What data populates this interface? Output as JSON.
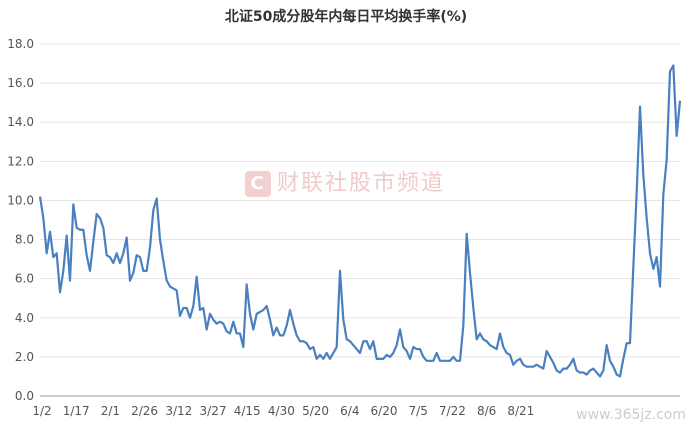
{
  "chart_data": {
    "type": "line",
    "title": "北证50成分股年内每日平均换手率(%)",
    "xlabel": "",
    "ylabel": "",
    "ylim": [
      0,
      18
    ],
    "y_ticks": [
      "0.0",
      "2.0",
      "4.0",
      "6.0",
      "8.0",
      "10.0",
      "12.0",
      "14.0",
      "16.0",
      "18.0"
    ],
    "x_tick_labels": [
      "1/2",
      "1/17",
      "2/1",
      "2/26",
      "3/12",
      "3/27",
      "4/15",
      "4/30",
      "5/20",
      "6/4",
      "6/20",
      "7/5",
      "7/22",
      "8/6",
      "8/21"
    ],
    "grid": true,
    "line_color": "#4a7fc1",
    "series": [
      {
        "values": [
          10.2,
          9.1,
          7.3,
          8.4,
          7.1,
          7.3,
          5.3,
          6.4,
          8.2,
          5.9,
          9.8,
          8.6,
          8.5,
          8.5,
          7.2,
          6.4,
          7.9,
          9.3,
          9.1,
          8.6,
          7.2,
          7.1,
          6.8,
          7.3,
          6.8,
          7.3,
          8.1,
          5.9,
          6.3,
          7.2,
          7.1,
          6.4,
          6.4,
          7.6,
          9.5,
          10.1,
          8.0,
          6.9,
          5.9,
          5.6,
          5.5,
          5.4,
          4.1,
          4.5,
          4.5,
          4.0,
          4.6,
          6.1,
          4.4,
          4.5,
          3.4,
          4.2,
          3.9,
          3.7,
          3.8,
          3.7,
          3.3,
          3.2,
          3.8,
          3.2,
          3.2,
          2.5,
          5.7,
          4.2,
          3.4,
          4.2,
          4.3,
          4.4,
          4.6,
          3.9,
          3.1,
          3.5,
          3.1,
          3.1,
          3.6,
          4.4,
          3.7,
          3.1,
          2.8,
          2.8,
          2.7,
          2.4,
          2.5,
          1.9,
          2.1,
          1.9,
          2.2,
          1.9,
          2.2,
          2.5,
          6.4,
          3.9,
          2.9,
          2.8,
          2.6,
          2.4,
          2.2,
          2.8,
          2.8,
          2.4,
          2.8,
          1.9,
          1.9,
          1.9,
          2.1,
          2.0,
          2.2,
          2.6,
          3.4,
          2.5,
          2.3,
          1.9,
          2.5,
          2.4,
          2.4,
          2.0,
          1.8,
          1.8,
          1.8,
          2.2,
          1.8,
          1.8,
          1.8,
          1.8,
          2.0,
          1.8,
          1.8,
          3.6,
          8.3,
          6.3,
          4.5,
          2.9,
          3.2,
          2.9,
          2.8,
          2.6,
          2.5,
          2.4,
          3.2,
          2.5,
          2.2,
          2.1,
          1.6,
          1.8,
          1.9,
          1.6,
          1.5,
          1.5,
          1.5,
          1.6,
          1.5,
          1.4,
          2.3,
          2.0,
          1.7,
          1.3,
          1.2,
          1.4,
          1.4,
          1.6,
          1.9,
          1.3,
          1.2,
          1.2,
          1.1,
          1.3,
          1.4,
          1.2,
          1.0,
          1.3,
          2.6,
          1.8,
          1.5,
          1.1,
          1.0,
          1.9,
          2.7,
          2.7,
          6.6,
          10.4,
          14.8,
          11.3,
          9.1,
          7.3,
          6.5,
          7.1,
          5.6,
          10.3,
          12.1,
          16.6,
          16.9,
          13.3,
          15.1
        ]
      }
    ]
  },
  "watermark": {
    "logo_letter": "C",
    "text": "财联社股市频道"
  },
  "site_watermark": "www.365jz.com"
}
